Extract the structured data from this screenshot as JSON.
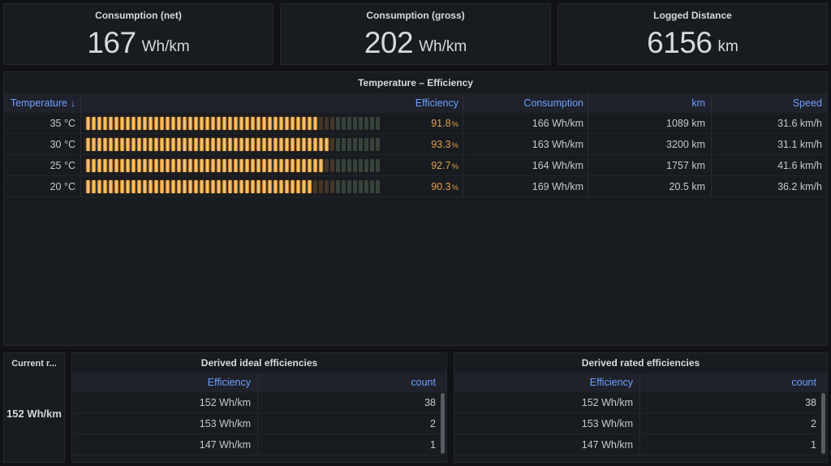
{
  "colors": {
    "background": "#111217",
    "panel_background": "#181b1f",
    "accent_blue": "#6e9fff",
    "efficiency_orange": "#dfa050",
    "gauge_lit": "#eb8b18",
    "gauge_dim_warm": "#443527",
    "gauge_dim_cool": "#37423a"
  },
  "stat_panels": [
    {
      "title": "Consumption (net)",
      "value": "167",
      "unit": "Wh/km"
    },
    {
      "title": "Consumption (gross)",
      "value": "202",
      "unit": "Wh/km"
    },
    {
      "title": "Logged Distance",
      "value": "6156",
      "unit": "km"
    }
  ],
  "temperature_panel": {
    "title": "Temperature – Efficiency",
    "headers": {
      "temperature": "Temperature",
      "sort_arrow": "↓",
      "efficiency": "Efficiency",
      "consumption": "Consumption",
      "km": "km",
      "speed": "Speed"
    },
    "gauge": {
      "min": 40,
      "max": 105,
      "green_threshold": 95,
      "cells": 52
    },
    "rows": [
      {
        "temperature": "35 °C",
        "efficiency_value": 91.8,
        "efficiency_text": "91.8",
        "efficiency_suffix": "%",
        "consumption": "166 Wh/km",
        "distance": "1089 km",
        "speed": "31.6 km/h"
      },
      {
        "temperature": "30 °C",
        "efficiency_value": 93.3,
        "efficiency_text": "93.3",
        "efficiency_suffix": "%",
        "consumption": "163 Wh/km",
        "distance": "3200 km",
        "speed": "31.1 km/h"
      },
      {
        "temperature": "25 °C",
        "efficiency_value": 92.7,
        "efficiency_text": "92.7",
        "efficiency_suffix": "%",
        "consumption": "164 Wh/km",
        "distance": "1757 km",
        "speed": "41.6 km/h"
      },
      {
        "temperature": "20 °C",
        "efficiency_value": 90.3,
        "efficiency_text": "90.3",
        "efficiency_suffix": "%",
        "consumption": "169 Wh/km",
        "distance": "20.5 km",
        "speed": "36.2 km/h"
      }
    ]
  },
  "current_panel": {
    "title": "Current r...",
    "value": "152 Wh/km"
  },
  "derived_tables": [
    {
      "title": "Derived ideal efficiencies",
      "headers": {
        "efficiency": "Efficiency",
        "count": "count"
      },
      "rows": [
        {
          "efficiency": "152 Wh/km",
          "count": "38"
        },
        {
          "efficiency": "153 Wh/km",
          "count": "2"
        },
        {
          "efficiency": "147 Wh/km",
          "count": "1"
        }
      ]
    },
    {
      "title": "Derived rated efficiencies",
      "headers": {
        "efficiency": "Efficiency",
        "count": "count"
      },
      "rows": [
        {
          "efficiency": "152 Wh/km",
          "count": "38"
        },
        {
          "efficiency": "153 Wh/km",
          "count": "2"
        },
        {
          "efficiency": "147 Wh/km",
          "count": "1"
        }
      ]
    }
  ]
}
